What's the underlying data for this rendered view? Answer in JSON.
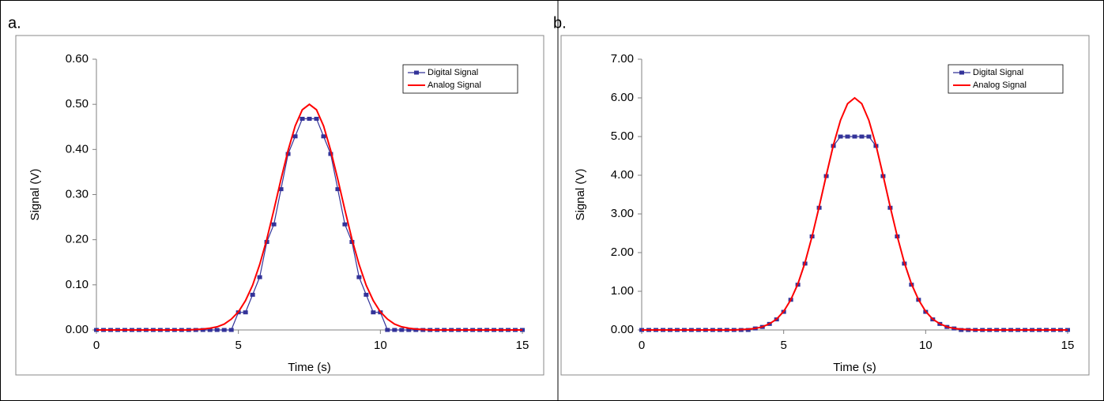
{
  "chart_data": [
    {
      "type": "line",
      "panel_label": "a.",
      "xlabel": "Time (s)",
      "ylabel": "Signal (V)",
      "x": [
        0,
        0.25,
        0.5,
        0.75,
        1,
        1.25,
        1.5,
        1.75,
        2,
        2.25,
        2.5,
        2.75,
        3,
        3.25,
        3.5,
        3.75,
        4,
        4.25,
        4.5,
        4.75,
        5,
        5.25,
        5.5,
        5.75,
        6,
        6.25,
        6.5,
        6.75,
        7,
        7.25,
        7.5,
        7.75,
        8,
        8.25,
        8.5,
        8.75,
        9,
        9.25,
        9.5,
        9.75,
        10,
        10.25,
        10.5,
        10.75,
        11,
        11.25,
        11.5,
        11.75,
        12,
        12.25,
        12.5,
        12.75,
        13,
        13.25,
        13.5,
        13.75,
        14,
        14.25,
        14.5,
        14.75,
        15
      ],
      "series": [
        {
          "name": "Digital Signal",
          "color": "#333399",
          "markers": true,
          "values": [
            0,
            0,
            0,
            0,
            0,
            0,
            0,
            0,
            0,
            0,
            0,
            0,
            0,
            0,
            0,
            0,
            0,
            0,
            0,
            0,
            0.039,
            0.039,
            0.078,
            0.117,
            0.195,
            0.234,
            0.312,
            0.39,
            0.429,
            0.468,
            0.468,
            0.468,
            0.429,
            0.39,
            0.312,
            0.234,
            0.195,
            0.117,
            0.078,
            0.039,
            0.039,
            0,
            0,
            0,
            0,
            0,
            0,
            0,
            0,
            0,
            0,
            0,
            0,
            0,
            0,
            0,
            0,
            0,
            0,
            0,
            0
          ]
        },
        {
          "name": "Analog Signal",
          "color": "#ff0000",
          "markers": false,
          "values": [
            0,
            0,
            0,
            0,
            0,
            0,
            0,
            0,
            0,
            0,
            0,
            0,
            0,
            0,
            0.001,
            0.002,
            0.004,
            0.007,
            0.013,
            0.024,
            0.04,
            0.065,
            0.099,
            0.145,
            0.201,
            0.266,
            0.334,
            0.398,
            0.452,
            0.488,
            0.5,
            0.488,
            0.452,
            0.398,
            0.334,
            0.266,
            0.201,
            0.145,
            0.099,
            0.065,
            0.04,
            0.024,
            0.013,
            0.007,
            0.004,
            0.002,
            0.001,
            0,
            0,
            0,
            0,
            0,
            0,
            0,
            0,
            0,
            0,
            0,
            0,
            0,
            0
          ]
        }
      ],
      "xlim": [
        0,
        15
      ],
      "xticks": [
        0,
        5,
        10,
        15
      ],
      "ylim": [
        0,
        0.6
      ],
      "yticks": [
        {
          "value": 0,
          "label": "0.00"
        },
        {
          "value": 0.1,
          "label": "0.10"
        },
        {
          "value": 0.2,
          "label": "0.20"
        },
        {
          "value": 0.3,
          "label": "0.30"
        },
        {
          "value": 0.4,
          "label": "0.40"
        },
        {
          "value": 0.5,
          "label": "0.50"
        },
        {
          "value": 0.6,
          "label": "0.60"
        }
      ],
      "legend": "upper right"
    },
    {
      "type": "line",
      "panel_label": "b.",
      "xlabel": "Time (s)",
      "ylabel": "Signal (V)",
      "x": [
        0,
        0.25,
        0.5,
        0.75,
        1,
        1.25,
        1.5,
        1.75,
        2,
        2.25,
        2.5,
        2.75,
        3,
        3.25,
        3.5,
        3.75,
        4,
        4.25,
        4.5,
        4.75,
        5,
        5.25,
        5.5,
        5.75,
        6,
        6.25,
        6.5,
        6.75,
        7,
        7.25,
        7.5,
        7.75,
        8,
        8.25,
        8.5,
        8.75,
        9,
        9.25,
        9.5,
        9.75,
        10,
        10.25,
        10.5,
        10.75,
        11,
        11.25,
        11.5,
        11.75,
        12,
        12.25,
        12.5,
        12.75,
        13,
        13.25,
        13.5,
        13.75,
        14,
        14.25,
        14.5,
        14.75,
        15
      ],
      "series": [
        {
          "name": "Digital Signal",
          "color": "#333399",
          "markers": true,
          "values": [
            0,
            0,
            0,
            0,
            0,
            0,
            0,
            0,
            0,
            0,
            0,
            0,
            0,
            0,
            0,
            0,
            0.039,
            0.078,
            0.156,
            0.273,
            0.468,
            0.78,
            1.17,
            1.716,
            2.418,
            3.159,
            3.978,
            4.758,
            5,
            5,
            5,
            5,
            5,
            4.758,
            3.978,
            3.159,
            2.418,
            1.716,
            1.17,
            0.78,
            0.468,
            0.273,
            0.156,
            0.078,
            0.039,
            0,
            0,
            0,
            0,
            0,
            0,
            0,
            0,
            0,
            0,
            0,
            0,
            0,
            0,
            0,
            0
          ]
        },
        {
          "name": "Analog Signal",
          "color": "#ff0000",
          "markers": false,
          "values": [
            0,
            0,
            0,
            0,
            0,
            0,
            0,
            0,
            0,
            0,
            0,
            0,
            0,
            0,
            0.01,
            0.02,
            0.04,
            0.08,
            0.16,
            0.28,
            0.48,
            0.78,
            1.19,
            1.74,
            2.42,
            3.19,
            4,
            4.78,
            5.42,
            5.85,
            6,
            5.85,
            5.42,
            4.78,
            4,
            3.19,
            2.42,
            1.74,
            1.19,
            0.78,
            0.48,
            0.28,
            0.16,
            0.08,
            0.04,
            0.02,
            0.01,
            0,
            0,
            0,
            0,
            0,
            0,
            0,
            0,
            0,
            0,
            0,
            0,
            0,
            0
          ]
        }
      ],
      "xlim": [
        0,
        15
      ],
      "xticks": [
        0,
        5,
        10,
        15
      ],
      "ylim": [
        0,
        7
      ],
      "yticks": [
        {
          "value": 0,
          "label": "0.00"
        },
        {
          "value": 1,
          "label": "1.00"
        },
        {
          "value": 2,
          "label": "2.00"
        },
        {
          "value": 3,
          "label": "3.00"
        },
        {
          "value": 4,
          "label": "4.00"
        },
        {
          "value": 5,
          "label": "5.00"
        },
        {
          "value": 6,
          "label": "6.00"
        },
        {
          "value": 7,
          "label": "7.00"
        }
      ],
      "legend": "upper right"
    }
  ]
}
